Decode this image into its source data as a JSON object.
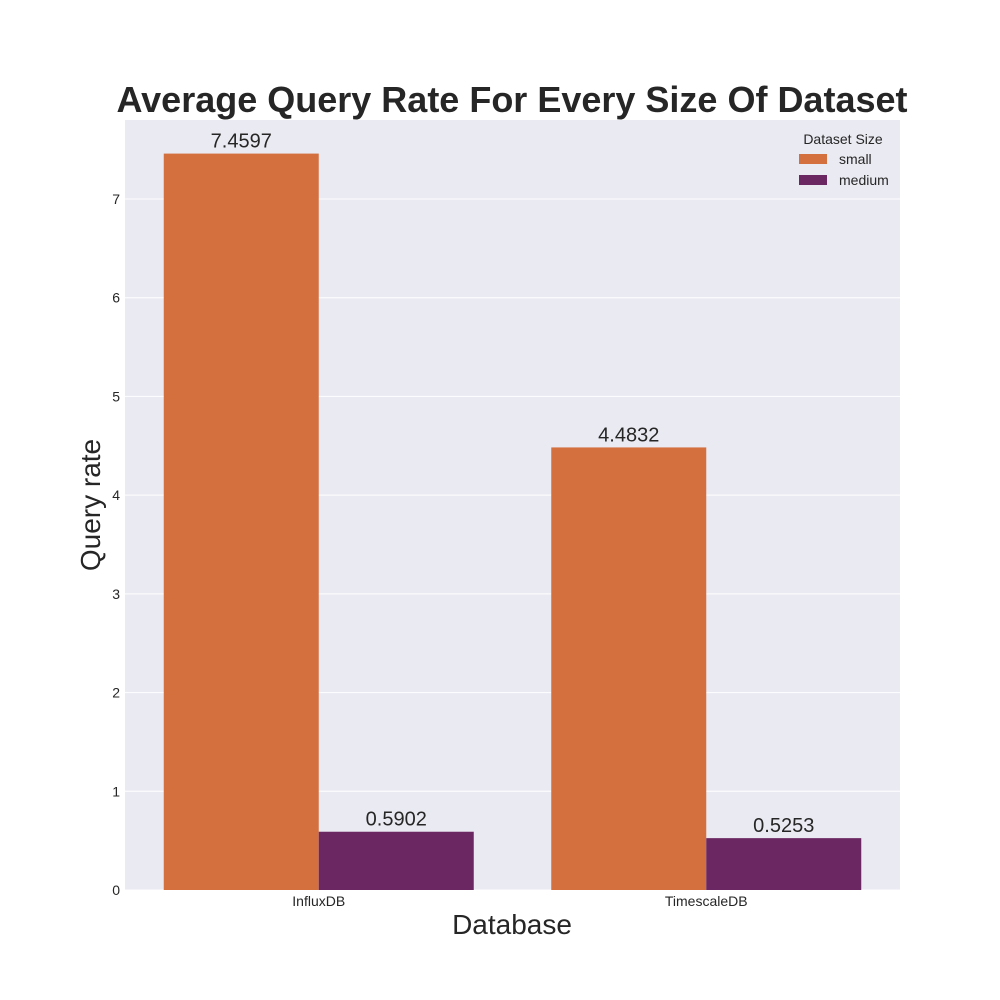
{
  "chart_data": {
    "type": "bar",
    "title": "Average Query Rate For Every Size Of Dataset",
    "xlabel": "Database",
    "ylabel": "Query rate",
    "categories": [
      "InfluxDB",
      "TimescaleDB"
    ],
    "series": [
      {
        "name": "small",
        "values": [
          7.4597,
          4.4832
        ],
        "labels": [
          "7.4597",
          "4.4832"
        ],
        "color": "#d4703e"
      },
      {
        "name": "medium",
        "values": [
          0.5902,
          0.5253
        ],
        "labels": [
          "0.5902",
          "0.5253"
        ],
        "color": "#6b2762"
      }
    ],
    "ylim": [
      0,
      7.8
    ],
    "yticks": [
      0,
      1,
      2,
      3,
      4,
      5,
      6,
      7
    ],
    "grid": true,
    "legend": {
      "title": "Dataset Size",
      "placement": "top-right"
    },
    "background_color": "#eaeaf2",
    "grid_color": "#ffffff"
  }
}
